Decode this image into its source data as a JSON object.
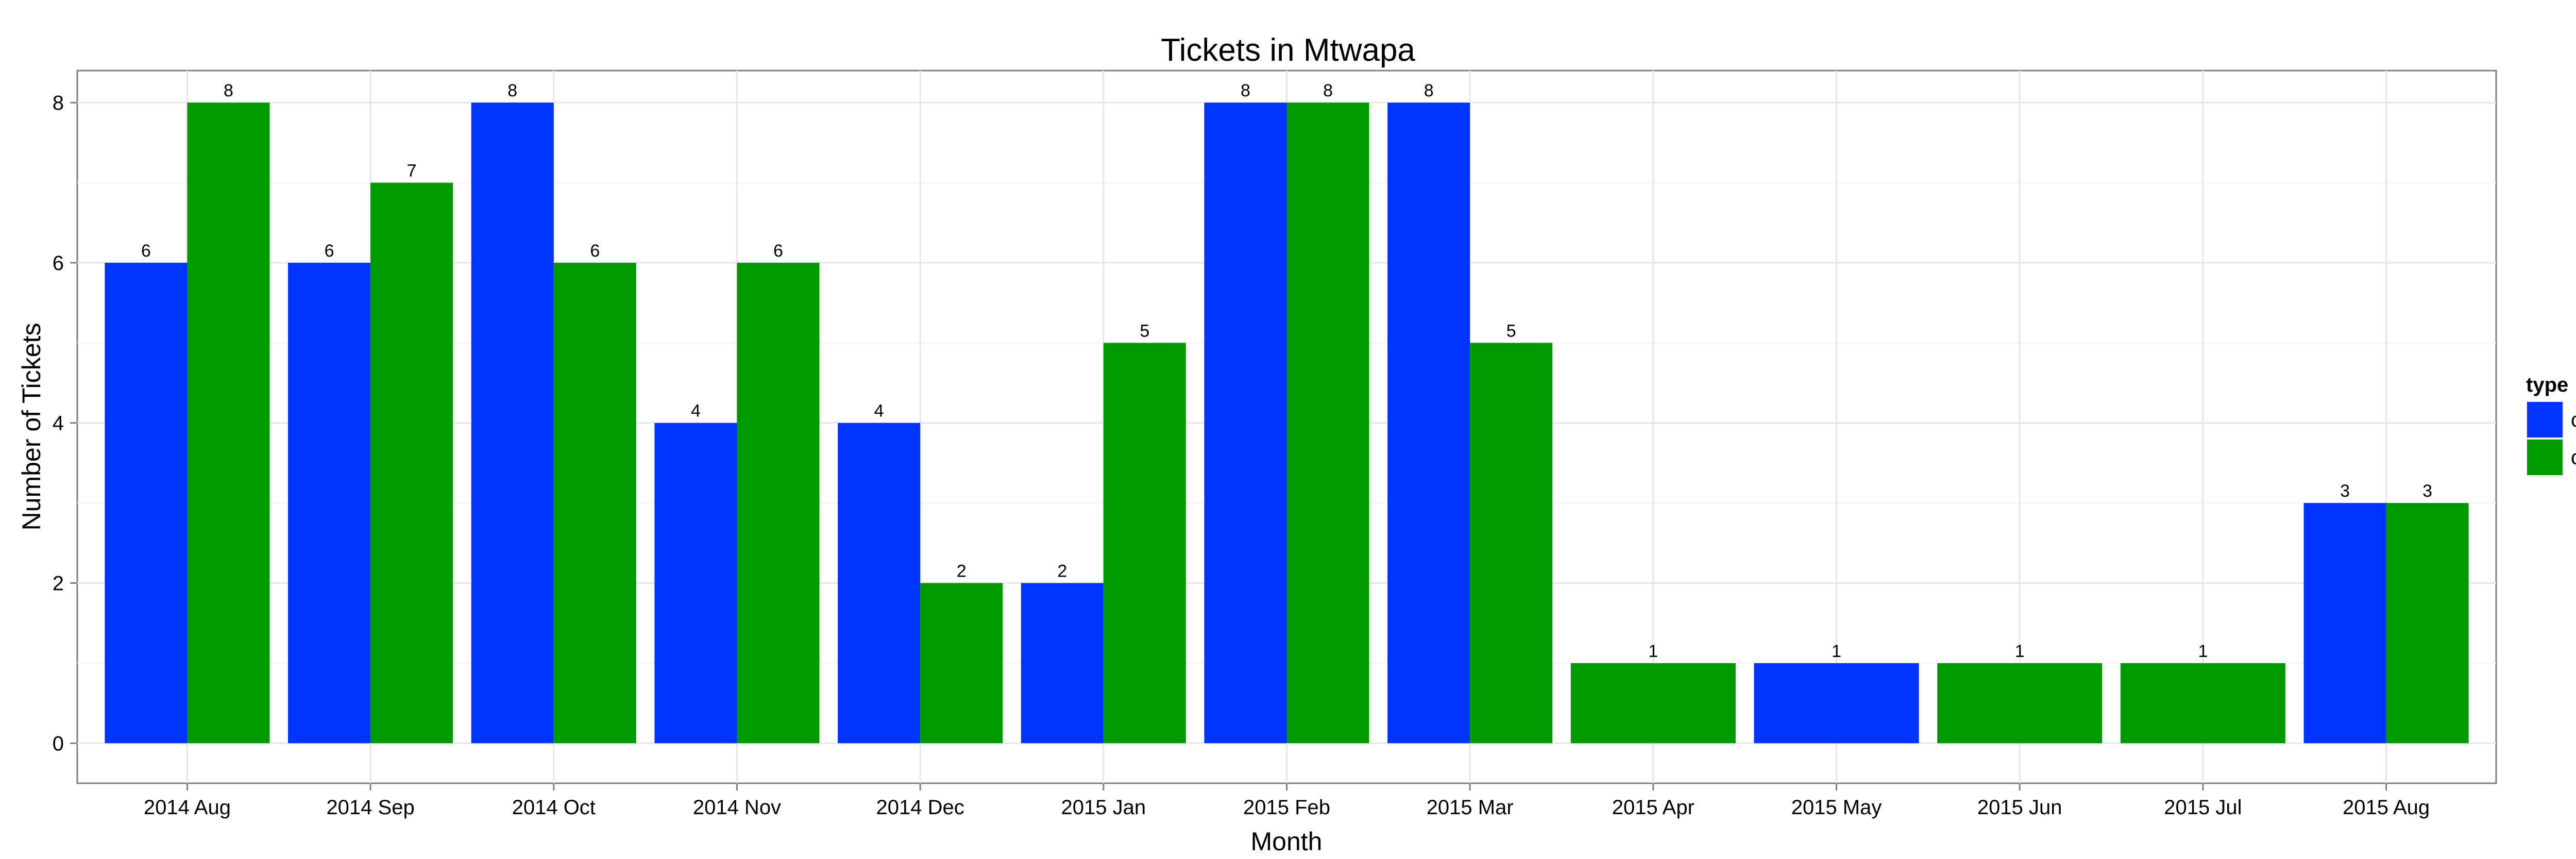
{
  "chart_data": {
    "type": "bar",
    "title": "Tickets in Mtwapa",
    "xlabel": "Month",
    "ylabel": "Number of Tickets",
    "ylim": [
      -0.5,
      8.4
    ],
    "yticks": [
      0,
      2,
      4,
      6,
      8
    ],
    "grid": true,
    "legend_position": "right",
    "legend_title": "type",
    "categories": [
      "2014 Aug",
      "2014 Sep",
      "2014 Oct",
      "2014 Nov",
      "2014 Dec",
      "2015 Jan",
      "2015 Feb",
      "2015 Mar",
      "2015 Apr",
      "2015 May",
      "2015 Jun",
      "2015 Jul",
      "2015 Aug"
    ],
    "series": [
      {
        "name": "closed",
        "color": "#0033FF",
        "values": [
          6,
          6,
          8,
          4,
          4,
          2,
          8,
          8,
          null,
          1,
          null,
          null,
          3
        ]
      },
      {
        "name": "open",
        "color": "#009900",
        "values": [
          8,
          7,
          6,
          6,
          2,
          5,
          8,
          5,
          1,
          null,
          1,
          1,
          3
        ]
      }
    ]
  }
}
